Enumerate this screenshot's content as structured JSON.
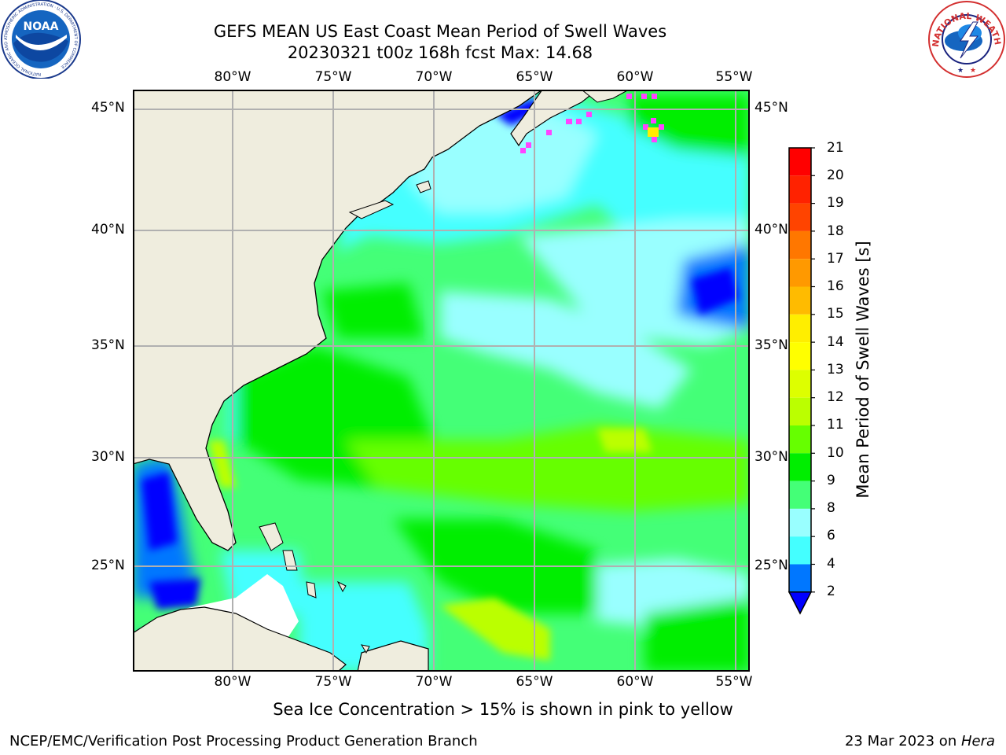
{
  "header": {
    "title_line1": "GEFS MEAN US East Coast Mean Period of Swell Waves",
    "title_line2": "20230321 t00z 168h fcst   Max: 14.68"
  },
  "logos": {
    "left_name": "NOAA",
    "left_ring_text": "NATIONAL OCEANIC AND ATMOSPHERIC ADMINISTRATION · U.S. DEPARTMENT OF COMMERCE",
    "right_ring_text": "NATIONAL WEATHER SERVICE"
  },
  "map": {
    "lon_labels": [
      "80°W",
      "75°W",
      "70°W",
      "65°W",
      "60°W",
      "55°W"
    ],
    "lat_labels": [
      "45°N",
      "40°N",
      "35°N",
      "30°N",
      "25°N"
    ],
    "colors": {
      "land": "#efedde",
      "coast": "#000000",
      "grid": "#b0b0b0"
    }
  },
  "colorbar": {
    "label": "Mean Period of Swell Waves [s]",
    "ticks": [
      "21",
      "20",
      "19",
      "18",
      "17",
      "16",
      "15",
      "14",
      "13",
      "12",
      "11",
      "10",
      "9",
      "8",
      "6",
      "4",
      "2"
    ],
    "colors": [
      "#ff0000",
      "#ff2200",
      "#ff4400",
      "#ff7700",
      "#ff9900",
      "#ffbb00",
      "#ffee00",
      "#ffff00",
      "#ddff00",
      "#bbff00",
      "#66ff00",
      "#00ee00",
      "#44ff77",
      "#99ffff",
      "#44ffff",
      "#00ddff",
      "#0077ff"
    ],
    "extend_color": "#0000ff"
  },
  "footer": {
    "note": "Sea Ice Concentration > 15% is shown in pink to yellow",
    "left": "NCEP/EMC/Verification Post Processing Product Generation Branch",
    "right_prefix": "23 Mar 2023 on ",
    "right_host": "Hera"
  }
}
